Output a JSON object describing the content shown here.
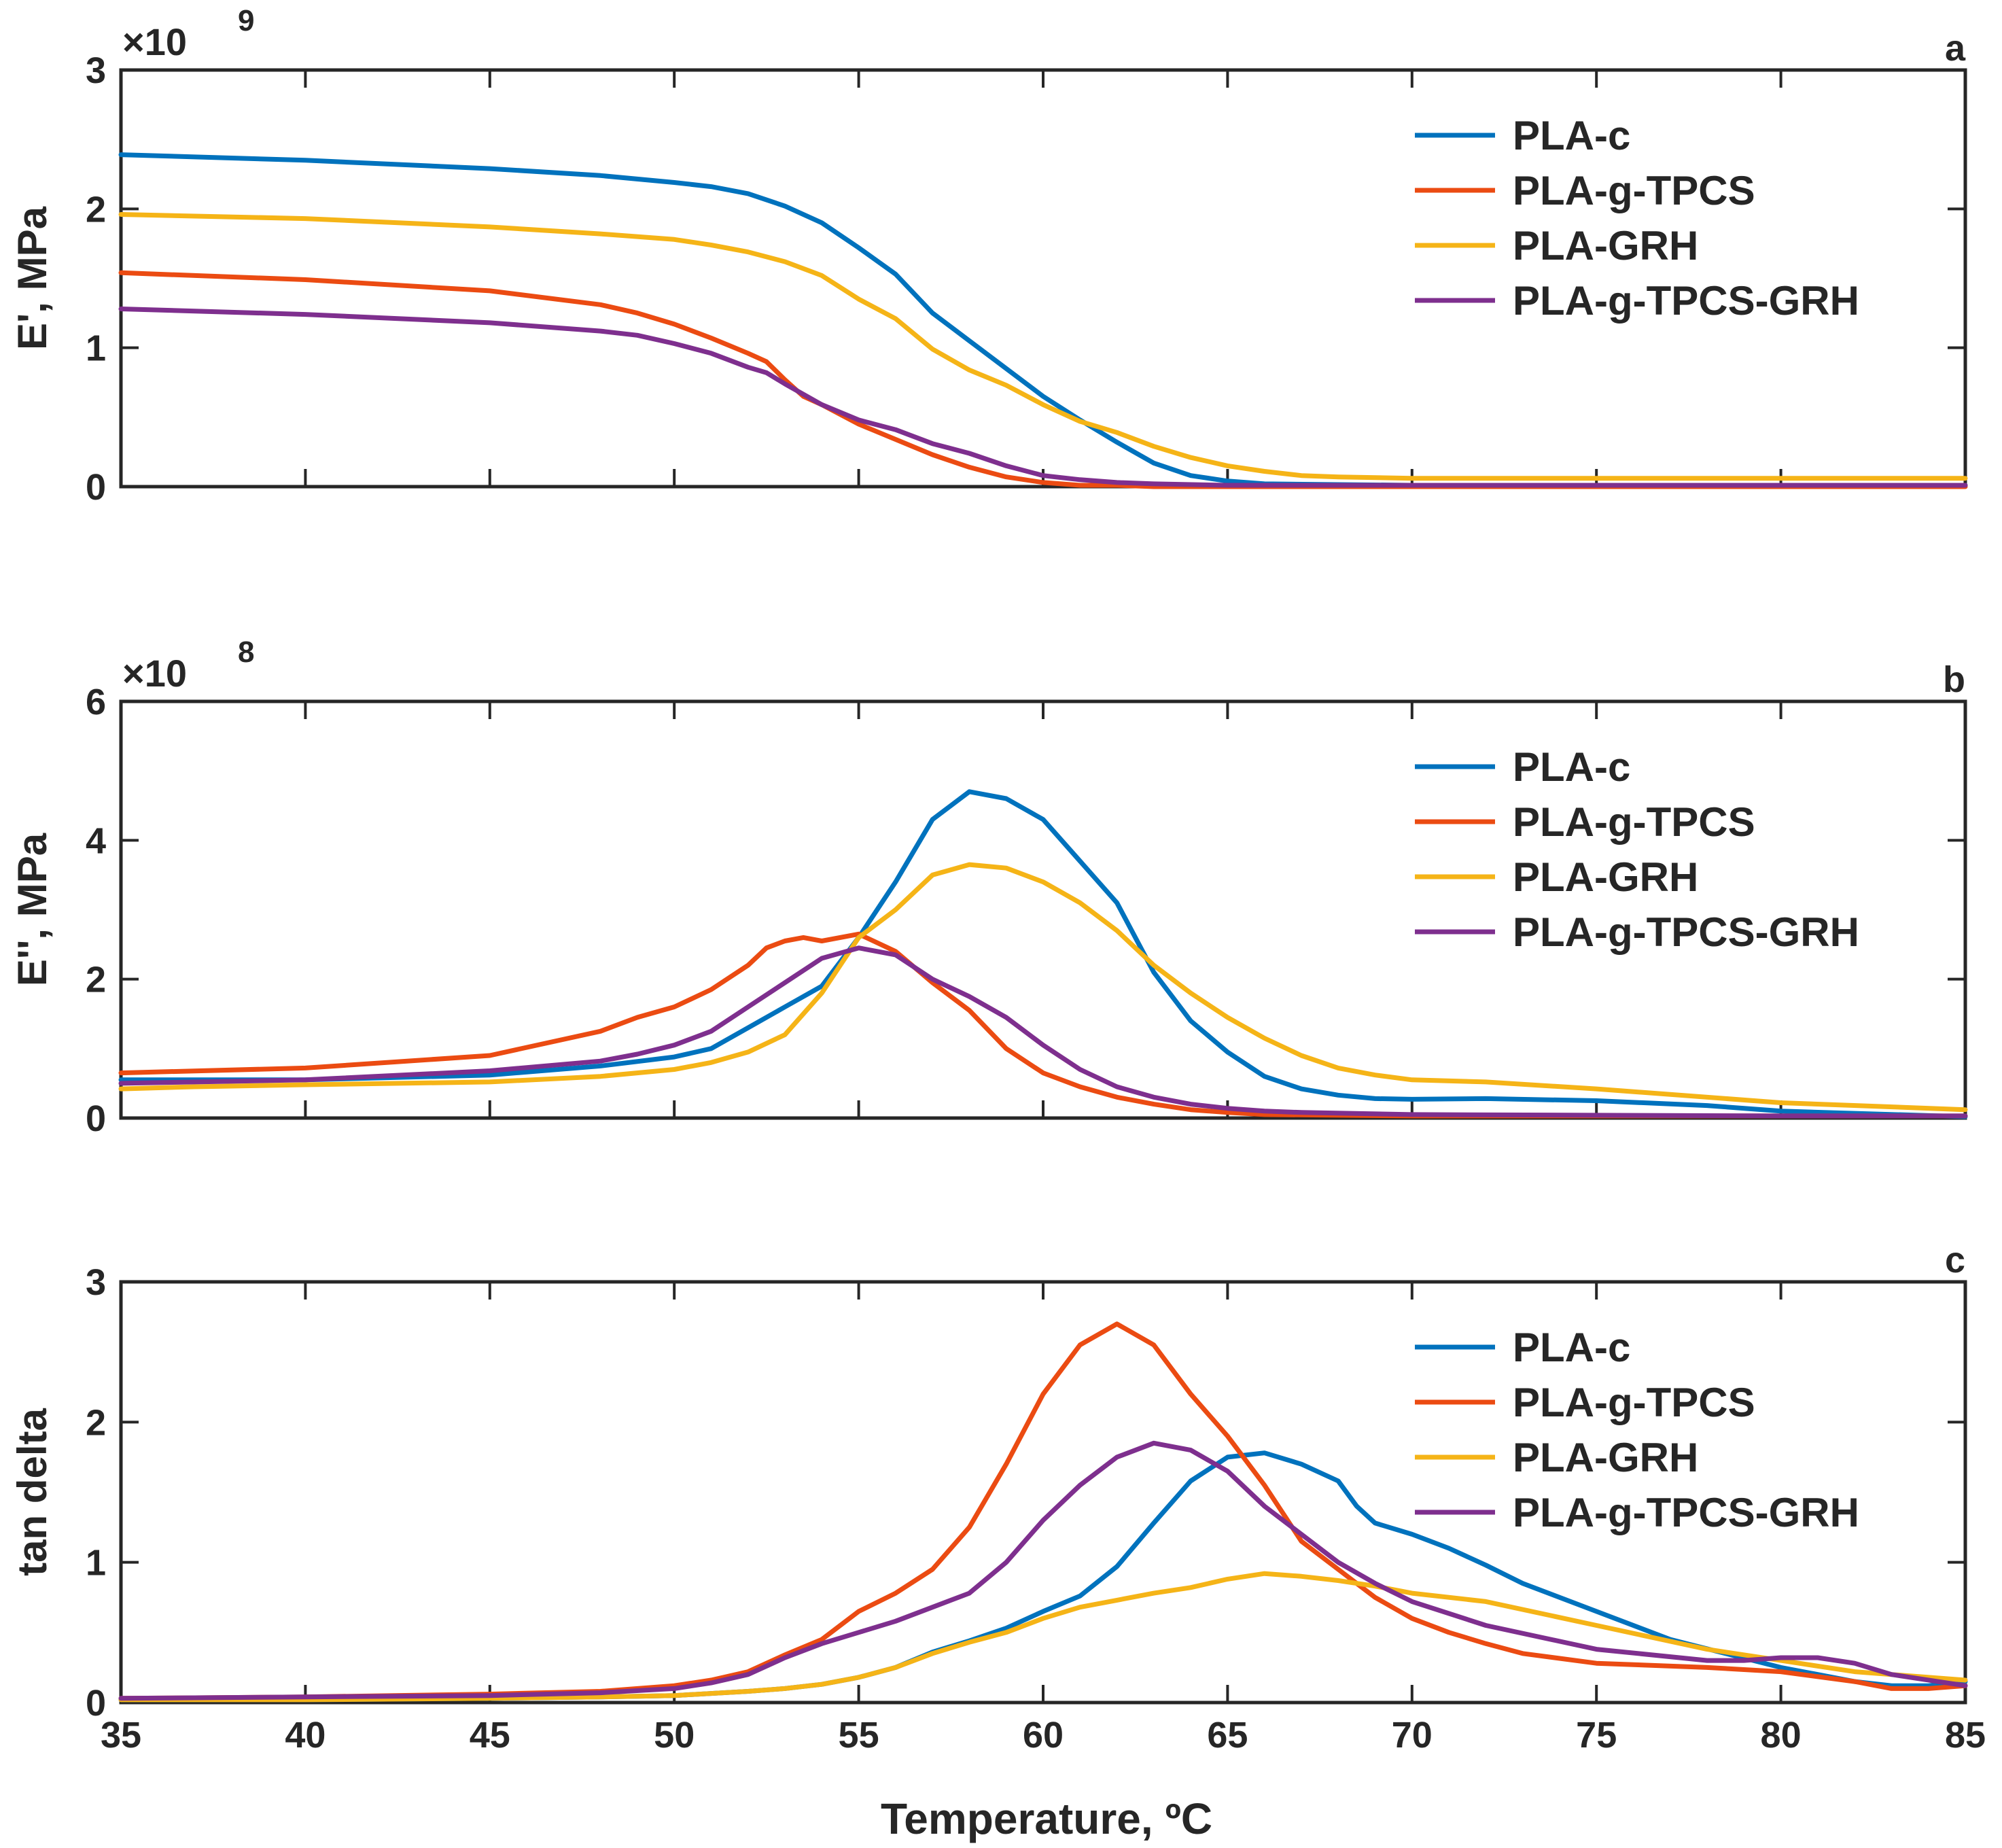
{
  "colors": {
    "PLA-c": "#0072BD",
    "PLA-g-TPCS": "#EB4B12",
    "PLA-GRH": "#F5B417",
    "PLA-g-TPCS-GRH": "#7E2F8E"
  },
  "xlabel": "Temperature, ºC",
  "chart_data": [
    {
      "type": "line",
      "panel": "a",
      "ylabel": "E', MPa",
      "exponent_label": "×10",
      "exponent_power": "9",
      "xlim": [
        35,
        85
      ],
      "ylim": [
        0,
        3
      ],
      "xticks": [
        35,
        40,
        45,
        50,
        55,
        60,
        65,
        70,
        75,
        80,
        85
      ],
      "yticks": [
        0,
        1,
        2,
        3
      ],
      "legend": [
        "PLA-c",
        "PLA-g-TPCS",
        "PLA-GRH",
        "PLA-g-TPCS-GRH"
      ],
      "legend_position": "top-right",
      "series": [
        {
          "name": "PLA-c",
          "x": [
            35,
            40,
            45,
            48,
            50,
            51,
            52,
            53,
            54,
            55,
            56,
            57,
            58,
            59,
            60,
            61,
            62,
            63,
            64,
            65,
            66,
            70,
            75,
            80,
            85
          ],
          "y": [
            2.39,
            2.35,
            2.29,
            2.24,
            2.19,
            2.16,
            2.11,
            2.02,
            1.9,
            1.72,
            1.53,
            1.25,
            1.05,
            0.85,
            0.65,
            0.48,
            0.32,
            0.17,
            0.08,
            0.04,
            0.02,
            0.01,
            0.01,
            0.01,
            0.01
          ]
        },
        {
          "name": "PLA-g-TPCS",
          "x": [
            35,
            40,
            45,
            48,
            49,
            50,
            51,
            52,
            52.5,
            53,
            53.5,
            54,
            55,
            56,
            57,
            58,
            59,
            60,
            61,
            62,
            63,
            65,
            70,
            75,
            80,
            85
          ],
          "y": [
            1.54,
            1.49,
            1.41,
            1.31,
            1.25,
            1.17,
            1.07,
            0.96,
            0.9,
            0.77,
            0.65,
            0.59,
            0.45,
            0.34,
            0.23,
            0.14,
            0.07,
            0.03,
            0.01,
            0.01,
            0.0,
            0.0,
            0.0,
            0.0,
            0.0,
            0.0
          ]
        },
        {
          "name": "PLA-GRH",
          "x": [
            35,
            40,
            45,
            48,
            50,
            51,
            52,
            53,
            54,
            55,
            56,
            57,
            58,
            59,
            60,
            61,
            62,
            63,
            64,
            65,
            66,
            67,
            68,
            70,
            75,
            80,
            85
          ],
          "y": [
            1.96,
            1.93,
            1.87,
            1.82,
            1.78,
            1.74,
            1.69,
            1.62,
            1.52,
            1.35,
            1.21,
            0.99,
            0.84,
            0.73,
            0.59,
            0.47,
            0.39,
            0.29,
            0.21,
            0.15,
            0.11,
            0.08,
            0.07,
            0.06,
            0.06,
            0.06,
            0.06
          ]
        },
        {
          "name": "PLA-g-TPCS-GRH",
          "x": [
            35,
            40,
            45,
            48,
            49,
            50,
            51,
            52,
            52.5,
            53,
            54,
            55,
            56,
            57,
            58,
            59,
            60,
            61,
            62,
            63,
            65,
            70,
            75,
            80,
            85
          ],
          "y": [
            1.28,
            1.24,
            1.18,
            1.12,
            1.09,
            1.03,
            0.96,
            0.86,
            0.82,
            0.74,
            0.59,
            0.48,
            0.41,
            0.31,
            0.24,
            0.15,
            0.08,
            0.05,
            0.03,
            0.02,
            0.01,
            0.01,
            0.01,
            0.01,
            0.01
          ]
        }
      ]
    },
    {
      "type": "line",
      "panel": "b",
      "ylabel": "E'', MPa",
      "exponent_label": "×10",
      "exponent_power": "8",
      "xlim": [
        35,
        85
      ],
      "ylim": [
        0,
        6
      ],
      "xticks": [
        35,
        40,
        45,
        50,
        55,
        60,
        65,
        70,
        75,
        80,
        85
      ],
      "yticks": [
        0,
        2,
        4,
        6
      ],
      "legend": [
        "PLA-c",
        "PLA-g-TPCS",
        "PLA-GRH",
        "PLA-g-TPCS-GRH"
      ],
      "legend_position": "top-right",
      "series": [
        {
          "name": "PLA-c",
          "x": [
            35,
            40,
            45,
            48,
            50,
            51,
            52,
            53,
            54,
            55,
            56,
            57,
            58,
            59,
            60,
            61,
            62,
            63,
            64,
            65,
            66,
            67,
            68,
            69,
            70,
            72,
            75,
            78,
            80,
            85
          ],
          "y": [
            0.55,
            0.55,
            0.62,
            0.75,
            0.88,
            1.0,
            1.3,
            1.6,
            1.9,
            2.6,
            3.4,
            4.3,
            4.7,
            4.6,
            4.3,
            3.7,
            3.1,
            2.1,
            1.4,
            0.95,
            0.6,
            0.42,
            0.33,
            0.28,
            0.27,
            0.28,
            0.25,
            0.18,
            0.1,
            0.02
          ]
        },
        {
          "name": "PLA-g-TPCS",
          "x": [
            35,
            40,
            45,
            48,
            49,
            50,
            51,
            52,
            52.5,
            53,
            53.5,
            54,
            55,
            56,
            57,
            58,
            59,
            60,
            61,
            62,
            63,
            64,
            65,
            66,
            70,
            75,
            80,
            85
          ],
          "y": [
            0.65,
            0.72,
            0.9,
            1.25,
            1.45,
            1.6,
            1.85,
            2.2,
            2.45,
            2.55,
            2.6,
            2.55,
            2.65,
            2.4,
            1.95,
            1.55,
            1.0,
            0.65,
            0.45,
            0.3,
            0.2,
            0.12,
            0.08,
            0.05,
            0.03,
            0.03,
            0.03,
            0.03
          ]
        },
        {
          "name": "PLA-GRH",
          "x": [
            35,
            37,
            40,
            45,
            48,
            50,
            51,
            52,
            53,
            54,
            55,
            56,
            57,
            58,
            59,
            60,
            61,
            62,
            63,
            64,
            65,
            66,
            67,
            68,
            69,
            70,
            72,
            75,
            80,
            85
          ],
          "y": [
            0.42,
            0.45,
            0.48,
            0.52,
            0.6,
            0.7,
            0.8,
            0.95,
            1.2,
            1.8,
            2.6,
            3.0,
            3.5,
            3.65,
            3.6,
            3.4,
            3.1,
            2.7,
            2.2,
            1.8,
            1.45,
            1.15,
            0.9,
            0.72,
            0.62,
            0.55,
            0.52,
            0.42,
            0.22,
            0.12
          ]
        },
        {
          "name": "PLA-g-TPCS-GRH",
          "x": [
            35,
            40,
            45,
            48,
            49,
            50,
            51,
            52,
            53,
            54,
            55,
            56,
            57,
            58,
            59,
            60,
            61,
            62,
            63,
            64,
            65,
            66,
            67,
            70,
            75,
            80,
            85
          ],
          "y": [
            0.5,
            0.55,
            0.68,
            0.82,
            0.92,
            1.05,
            1.25,
            1.6,
            1.95,
            2.3,
            2.45,
            2.35,
            2.0,
            1.75,
            1.45,
            1.05,
            0.7,
            0.45,
            0.3,
            0.2,
            0.14,
            0.1,
            0.08,
            0.05,
            0.04,
            0.03,
            0.03
          ]
        }
      ]
    },
    {
      "type": "line",
      "panel": "c",
      "ylabel": "tan delta",
      "xlim": [
        35,
        85
      ],
      "ylim": [
        0,
        3
      ],
      "xticks": [
        35,
        40,
        45,
        50,
        55,
        60,
        65,
        70,
        75,
        80,
        85
      ],
      "yticks": [
        0,
        1,
        2,
        3
      ],
      "legend": [
        "PLA-c",
        "PLA-g-TPCS",
        "PLA-GRH",
        "PLA-g-TPCS-GRH"
      ],
      "legend_position": "top-right",
      "series": [
        {
          "name": "PLA-c",
          "x": [
            35,
            40,
            45,
            48,
            50,
            52,
            53,
            54,
            55,
            56,
            57,
            58,
            59,
            60,
            61,
            62,
            63,
            64,
            65,
            66,
            67,
            68,
            68.5,
            69,
            70,
            71,
            72,
            73,
            75,
            77,
            80,
            82,
            83,
            84,
            85
          ],
          "y": [
            0.02,
            0.02,
            0.03,
            0.04,
            0.05,
            0.08,
            0.1,
            0.13,
            0.18,
            0.25,
            0.36,
            0.44,
            0.53,
            0.65,
            0.76,
            0.97,
            1.28,
            1.58,
            1.75,
            1.78,
            1.7,
            1.58,
            1.4,
            1.28,
            1.2,
            1.1,
            0.98,
            0.85,
            0.65,
            0.45,
            0.25,
            0.15,
            0.12,
            0.12,
            0.15
          ]
        },
        {
          "name": "PLA-g-TPCS",
          "x": [
            35,
            40,
            45,
            48,
            50,
            51,
            52,
            53,
            54,
            55,
            56,
            57,
            58,
            59,
            60,
            61,
            62,
            63,
            64,
            65,
            66,
            67,
            68,
            69,
            70,
            71,
            72,
            73,
            75,
            78,
            80,
            82,
            83,
            84,
            85
          ],
          "y": [
            0.03,
            0.04,
            0.06,
            0.08,
            0.12,
            0.16,
            0.22,
            0.34,
            0.45,
            0.65,
            0.78,
            0.95,
            1.25,
            1.7,
            2.2,
            2.55,
            2.7,
            2.55,
            2.2,
            1.9,
            1.55,
            1.15,
            0.95,
            0.75,
            0.6,
            0.5,
            0.42,
            0.35,
            0.28,
            0.25,
            0.22,
            0.15,
            0.1,
            0.1,
            0.12
          ]
        },
        {
          "name": "PLA-GRH",
          "x": [
            35,
            40,
            45,
            48,
            50,
            52,
            53,
            54,
            55,
            56,
            57,
            58,
            59,
            60,
            61,
            62,
            63,
            64,
            65,
            66,
            67,
            68,
            69,
            70,
            72,
            75,
            78,
            80,
            82,
            85
          ],
          "y": [
            0.02,
            0.02,
            0.03,
            0.04,
            0.05,
            0.08,
            0.1,
            0.13,
            0.18,
            0.25,
            0.35,
            0.43,
            0.5,
            0.6,
            0.68,
            0.73,
            0.78,
            0.82,
            0.88,
            0.92,
            0.9,
            0.87,
            0.83,
            0.78,
            0.72,
            0.55,
            0.38,
            0.3,
            0.22,
            0.16
          ]
        },
        {
          "name": "PLA-g-TPCS-GRH",
          "x": [
            35,
            40,
            45,
            48,
            50,
            51,
            52,
            53,
            54,
            55,
            56,
            57,
            58,
            59,
            60,
            61,
            62,
            63,
            64,
            65,
            66,
            67,
            68,
            69,
            70,
            72,
            75,
            78,
            79,
            80,
            81,
            82,
            83,
            85
          ],
          "y": [
            0.03,
            0.04,
            0.05,
            0.07,
            0.1,
            0.14,
            0.2,
            0.32,
            0.42,
            0.5,
            0.58,
            0.68,
            0.78,
            1.0,
            1.3,
            1.55,
            1.75,
            1.85,
            1.8,
            1.65,
            1.4,
            1.2,
            1.0,
            0.85,
            0.72,
            0.55,
            0.38,
            0.3,
            0.3,
            0.32,
            0.32,
            0.28,
            0.2,
            0.12
          ]
        }
      ]
    }
  ]
}
